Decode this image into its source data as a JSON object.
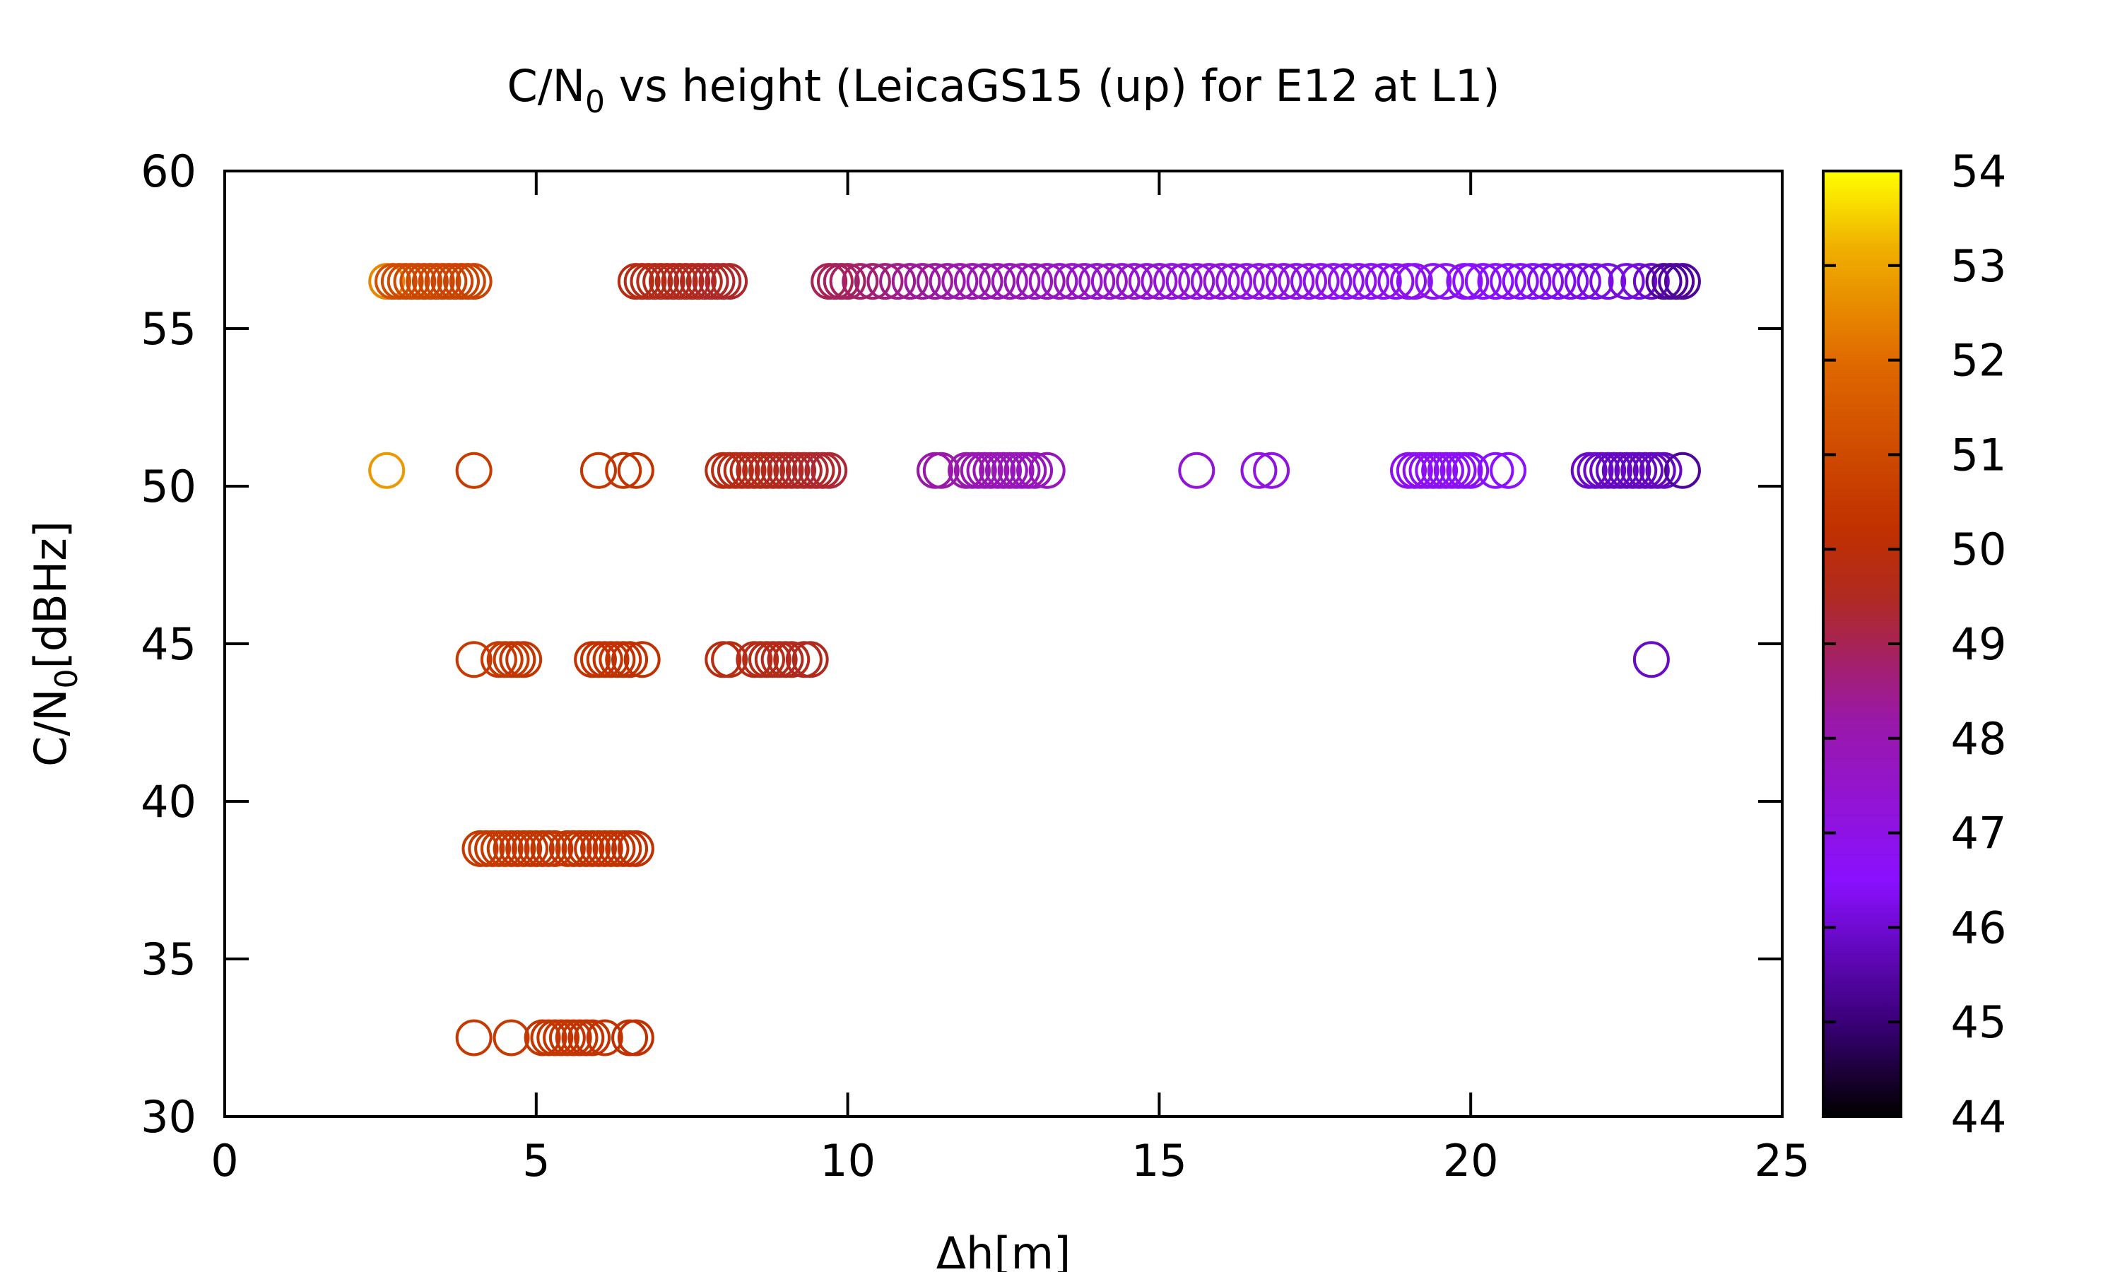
{
  "chart_data": {
    "type": "scatter",
    "title": {
      "pre": "C/N",
      "sub": "0",
      "post": " vs height (LeicaGS15 (up) for E12 at L1)"
    },
    "xlabel": "Δh[m]",
    "ylabel": {
      "pre": "C/N",
      "sub": "0",
      "post": "[dBHz]"
    },
    "xlim": [
      0,
      25
    ],
    "ylim": [
      30,
      60
    ],
    "xticks": [
      0,
      5,
      10,
      15,
      20,
      25
    ],
    "yticks": [
      30,
      35,
      40,
      45,
      50,
      55,
      60
    ],
    "colorbar": {
      "range": [
        44,
        54
      ],
      "ticks": [
        44,
        45,
        46,
        47,
        48,
        49,
        50,
        51,
        52,
        53,
        54
      ],
      "palette": "black-purple-red-orange-yellow"
    },
    "marker": "open-circle",
    "grid": false,
    "series": [
      {
        "y": 56.5,
        "points": [
          [
            2.6,
            52.5
          ],
          [
            2.7,
            51.2
          ],
          [
            2.8,
            51.1
          ],
          [
            2.9,
            51.0
          ],
          [
            3.0,
            51.0
          ],
          [
            3.1,
            51.0
          ],
          [
            3.2,
            50.9
          ],
          [
            3.3,
            50.9
          ],
          [
            3.4,
            50.9
          ],
          [
            3.5,
            50.9
          ],
          [
            3.6,
            50.8
          ],
          [
            3.7,
            50.8
          ],
          [
            3.8,
            50.8
          ],
          [
            3.9,
            50.8
          ],
          [
            4.0,
            50.8
          ],
          [
            6.6,
            49.8
          ],
          [
            6.7,
            49.7
          ],
          [
            6.8,
            49.7
          ],
          [
            6.9,
            49.7
          ],
          [
            7.0,
            49.6
          ],
          [
            7.1,
            49.6
          ],
          [
            7.2,
            49.6
          ],
          [
            7.3,
            49.6
          ],
          [
            7.4,
            49.5
          ],
          [
            7.5,
            49.5
          ],
          [
            7.6,
            49.5
          ],
          [
            7.7,
            49.5
          ],
          [
            7.8,
            49.4
          ],
          [
            7.9,
            49.4
          ],
          [
            8.0,
            49.4
          ],
          [
            8.1,
            49.4
          ],
          [
            9.7,
            49.0
          ],
          [
            9.8,
            49.0
          ],
          [
            9.9,
            48.9
          ],
          [
            10.0,
            48.9
          ],
          [
            10.2,
            48.8
          ],
          [
            10.4,
            48.7
          ],
          [
            10.6,
            48.6
          ],
          [
            10.8,
            48.5
          ],
          [
            11.0,
            48.4
          ],
          [
            11.2,
            48.3
          ],
          [
            11.4,
            48.3
          ],
          [
            11.6,
            48.2
          ],
          [
            11.8,
            48.1
          ],
          [
            12.0,
            48.1
          ],
          [
            12.2,
            48.0
          ],
          [
            12.4,
            48.0
          ],
          [
            12.6,
            47.9
          ],
          [
            12.8,
            47.9
          ],
          [
            13.0,
            47.8
          ],
          [
            13.2,
            47.8
          ],
          [
            13.4,
            47.7
          ],
          [
            13.6,
            47.7
          ],
          [
            13.8,
            47.6
          ],
          [
            14.0,
            47.6
          ],
          [
            14.2,
            47.5
          ],
          [
            14.4,
            47.5
          ],
          [
            14.6,
            47.5
          ],
          [
            14.8,
            47.4
          ],
          [
            15.0,
            47.4
          ],
          [
            15.2,
            47.3
          ],
          [
            15.4,
            47.3
          ],
          [
            15.6,
            47.3
          ],
          [
            15.8,
            47.2
          ],
          [
            16.0,
            47.2
          ],
          [
            16.2,
            47.2
          ],
          [
            16.4,
            47.1
          ],
          [
            16.6,
            47.1
          ],
          [
            16.8,
            47.1
          ],
          [
            17.0,
            47.0
          ],
          [
            17.2,
            47.0
          ],
          [
            17.4,
            47.0
          ],
          [
            17.6,
            46.9
          ],
          [
            17.8,
            46.9
          ],
          [
            18.0,
            46.9
          ],
          [
            18.2,
            46.9
          ],
          [
            18.4,
            46.8
          ],
          [
            18.6,
            46.8
          ],
          [
            18.8,
            46.8
          ],
          [
            19.0,
            46.8
          ],
          [
            19.1,
            46.8
          ],
          [
            19.4,
            46.7
          ],
          [
            19.6,
            46.7
          ],
          [
            19.9,
            46.6
          ],
          [
            20.0,
            46.5
          ],
          [
            20.2,
            46.5
          ],
          [
            20.4,
            46.5
          ],
          [
            20.6,
            46.4
          ],
          [
            20.8,
            46.4
          ],
          [
            21.0,
            46.4
          ],
          [
            21.2,
            46.3
          ],
          [
            21.4,
            46.3
          ],
          [
            21.6,
            46.3
          ],
          [
            21.8,
            46.2
          ],
          [
            22.0,
            46.2
          ],
          [
            22.2,
            46.2
          ],
          [
            22.5,
            46.1
          ],
          [
            22.7,
            46.1
          ],
          [
            22.9,
            45.9
          ],
          [
            23.1,
            45.4
          ],
          [
            23.2,
            45.4
          ],
          [
            23.3,
            45.4
          ],
          [
            23.4,
            45.4
          ]
        ]
      },
      {
        "y": 50.5,
        "points": [
          [
            2.6,
            52.8
          ],
          [
            4.0,
            50.6
          ],
          [
            6.0,
            50.4
          ],
          [
            6.4,
            50.4
          ],
          [
            6.6,
            50.3
          ],
          [
            8.0,
            49.8
          ],
          [
            8.1,
            49.8
          ],
          [
            8.2,
            49.7
          ],
          [
            8.3,
            49.7
          ],
          [
            8.4,
            49.7
          ],
          [
            8.5,
            49.6
          ],
          [
            8.6,
            49.6
          ],
          [
            8.7,
            49.6
          ],
          [
            8.8,
            49.6
          ],
          [
            8.9,
            49.5
          ],
          [
            9.0,
            49.5
          ],
          [
            9.1,
            49.5
          ],
          [
            9.2,
            49.4
          ],
          [
            9.3,
            49.4
          ],
          [
            9.4,
            49.4
          ],
          [
            9.5,
            49.4
          ],
          [
            9.6,
            49.3
          ],
          [
            9.7,
            49.3
          ],
          [
            11.4,
            48.2
          ],
          [
            11.5,
            48.2
          ],
          [
            11.9,
            48.1
          ],
          [
            12.0,
            48.1
          ],
          [
            12.1,
            48.0
          ],
          [
            12.2,
            48.0
          ],
          [
            12.3,
            48.0
          ],
          [
            12.4,
            48.0
          ],
          [
            12.5,
            47.9
          ],
          [
            12.6,
            47.9
          ],
          [
            12.7,
            47.9
          ],
          [
            12.8,
            47.9
          ],
          [
            12.9,
            47.8
          ],
          [
            13.0,
            47.8
          ],
          [
            13.2,
            47.8
          ],
          [
            15.6,
            47.3
          ],
          [
            16.6,
            47.1
          ],
          [
            16.8,
            47.1
          ],
          [
            19.0,
            46.8
          ],
          [
            19.1,
            46.8
          ],
          [
            19.2,
            46.8
          ],
          [
            19.3,
            46.8
          ],
          [
            19.4,
            46.7
          ],
          [
            19.5,
            46.7
          ],
          [
            19.6,
            46.7
          ],
          [
            19.7,
            46.7
          ],
          [
            19.8,
            46.7
          ],
          [
            19.9,
            46.6
          ],
          [
            20.0,
            46.6
          ],
          [
            20.4,
            46.5
          ],
          [
            20.6,
            46.5
          ],
          [
            21.9,
            45.9
          ],
          [
            22.0,
            45.9
          ],
          [
            22.1,
            45.9
          ],
          [
            22.2,
            45.9
          ],
          [
            22.3,
            45.8
          ],
          [
            22.4,
            45.8
          ],
          [
            22.5,
            45.8
          ],
          [
            22.6,
            45.8
          ],
          [
            22.7,
            45.8
          ],
          [
            22.8,
            45.8
          ],
          [
            22.9,
            45.8
          ],
          [
            23.0,
            45.8
          ],
          [
            23.1,
            45.8
          ],
          [
            23.4,
            45.4
          ]
        ]
      },
      {
        "y": 44.5,
        "points": [
          [
            4.0,
            50.5
          ],
          [
            4.4,
            50.5
          ],
          [
            4.5,
            50.5
          ],
          [
            4.6,
            50.5
          ],
          [
            4.7,
            50.4
          ],
          [
            4.8,
            50.4
          ],
          [
            5.9,
            50.3
          ],
          [
            6.0,
            50.3
          ],
          [
            6.1,
            50.3
          ],
          [
            6.2,
            50.3
          ],
          [
            6.3,
            50.3
          ],
          [
            6.4,
            50.3
          ],
          [
            6.5,
            50.2
          ],
          [
            6.7,
            50.2
          ],
          [
            8.0,
            49.8
          ],
          [
            8.1,
            49.8
          ],
          [
            8.5,
            49.7
          ],
          [
            8.6,
            49.7
          ],
          [
            8.7,
            49.7
          ],
          [
            8.8,
            49.6
          ],
          [
            8.9,
            49.6
          ],
          [
            9.0,
            49.6
          ],
          [
            9.1,
            49.6
          ],
          [
            9.3,
            49.5
          ],
          [
            9.4,
            49.5
          ],
          [
            22.9,
            45.9
          ]
        ]
      },
      {
        "y": 38.5,
        "points": [
          [
            4.1,
            50.5
          ],
          [
            4.2,
            50.5
          ],
          [
            4.3,
            50.5
          ],
          [
            4.4,
            50.5
          ],
          [
            4.5,
            50.5
          ],
          [
            4.6,
            50.5
          ],
          [
            4.7,
            50.4
          ],
          [
            4.8,
            50.4
          ],
          [
            4.9,
            50.4
          ],
          [
            5.0,
            50.4
          ],
          [
            5.1,
            50.4
          ],
          [
            5.2,
            50.4
          ],
          [
            5.3,
            50.4
          ],
          [
            5.5,
            50.4
          ],
          [
            5.6,
            50.4
          ],
          [
            5.7,
            50.4
          ],
          [
            5.8,
            50.3
          ],
          [
            5.9,
            50.3
          ],
          [
            6.0,
            50.3
          ],
          [
            6.1,
            50.3
          ],
          [
            6.2,
            50.3
          ],
          [
            6.3,
            50.3
          ],
          [
            6.4,
            50.3
          ],
          [
            6.5,
            50.2
          ],
          [
            6.6,
            50.2
          ]
        ]
      },
      {
        "y": 32.5,
        "points": [
          [
            4.0,
            50.5
          ],
          [
            4.6,
            50.5
          ],
          [
            5.1,
            50.4
          ],
          [
            5.2,
            50.4
          ],
          [
            5.3,
            50.4
          ],
          [
            5.4,
            50.4
          ],
          [
            5.5,
            50.4
          ],
          [
            5.6,
            50.4
          ],
          [
            5.7,
            50.4
          ],
          [
            5.8,
            50.3
          ],
          [
            5.9,
            50.3
          ],
          [
            6.1,
            50.3
          ],
          [
            6.5,
            50.2
          ],
          [
            6.6,
            50.2
          ]
        ]
      }
    ]
  }
}
